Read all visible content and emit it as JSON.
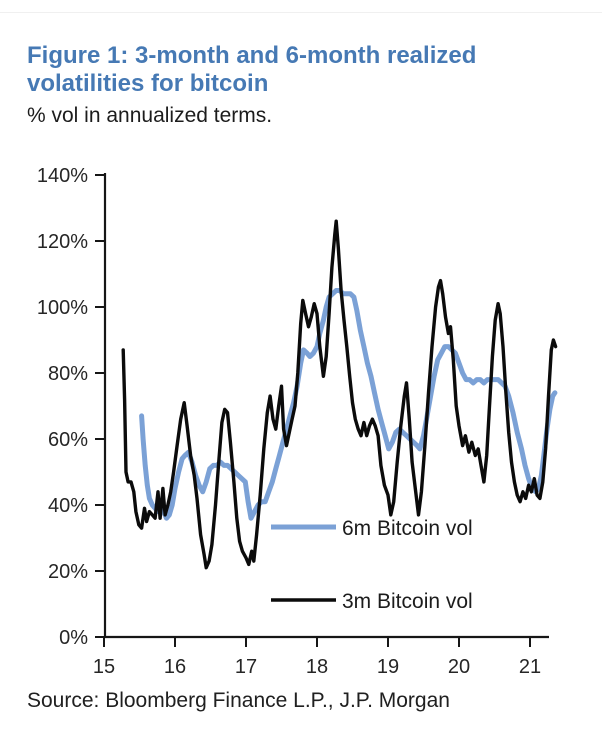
{
  "figure": {
    "title": "Figure 1: 3-month and 6-month realized volatilities for bitcoin",
    "title_lines": [
      "Figure 1: 3-month and 6-month realized",
      "volatilities for bitcoin"
    ],
    "title_color": "#4679b4",
    "subtitle": "% vol in annualized terms.",
    "source": "Source: Bloomberg Finance L.P., J.P. Morgan"
  },
  "chart_data": {
    "type": "line",
    "title": "Figure 1: 3-month and 6-month realized volatilities for bitcoin",
    "subtitle": "% vol in annualized terms.",
    "source": "Source: Bloomberg Finance L.P., J.P. Morgan",
    "xlabel": "",
    "ylabel": "% vol in annualized terms",
    "grid": false,
    "legend_position": "inside-bottom-center",
    "x_axis": {
      "tick_labels": [
        "15",
        "16",
        "17",
        "18",
        "19",
        "20",
        "21"
      ],
      "tick_values": [
        15,
        16,
        17,
        18,
        19,
        20,
        21
      ],
      "range": [
        14.97,
        21.45
      ]
    },
    "y_axis": {
      "tick_labels": [
        "0%",
        "20%",
        "40%",
        "60%",
        "80%",
        "100%",
        "120%",
        "140%"
      ],
      "tick_values": [
        0,
        20,
        40,
        60,
        80,
        100,
        120,
        140
      ],
      "range": [
        0,
        140
      ],
      "unit": "% annualized vol"
    },
    "legend": [
      {
        "label": "6m Bitcoin vol",
        "color": "#7ba1d6"
      },
      {
        "label": "3m Bitcoin vol",
        "color": "#0b0b0b"
      }
    ],
    "series": [
      {
        "name": "6m Bitcoin vol",
        "color": "#7ba1d6",
        "stroke_width": 5,
        "points": [
          [
            15.53,
            67
          ],
          [
            15.55,
            60
          ],
          [
            15.58,
            52
          ],
          [
            15.61,
            46
          ],
          [
            15.64,
            42
          ],
          [
            15.68,
            40
          ],
          [
            15.72,
            39
          ],
          [
            15.76,
            38
          ],
          [
            15.8,
            39
          ],
          [
            15.84,
            38
          ],
          [
            15.88,
            36
          ],
          [
            15.92,
            37
          ],
          [
            15.96,
            40
          ],
          [
            16.0,
            45
          ],
          [
            16.05,
            50
          ],
          [
            16.1,
            54
          ],
          [
            16.14,
            55
          ],
          [
            16.19,
            56
          ],
          [
            16.24,
            53
          ],
          [
            16.29,
            49
          ],
          [
            16.34,
            46
          ],
          [
            16.39,
            44
          ],
          [
            16.44,
            47
          ],
          [
            16.49,
            51
          ],
          [
            16.54,
            52
          ],
          [
            16.59,
            52
          ],
          [
            16.64,
            53
          ],
          [
            16.69,
            52
          ],
          [
            16.74,
            52
          ],
          [
            16.79,
            51
          ],
          [
            16.84,
            50
          ],
          [
            16.89,
            49
          ],
          [
            16.94,
            48
          ],
          [
            16.99,
            47
          ],
          [
            17.03,
            41
          ],
          [
            17.07,
            36
          ],
          [
            17.12,
            38
          ],
          [
            17.17,
            40
          ],
          [
            17.22,
            41
          ],
          [
            17.27,
            41
          ],
          [
            17.32,
            44
          ],
          [
            17.37,
            47
          ],
          [
            17.42,
            51
          ],
          [
            17.47,
            55
          ],
          [
            17.52,
            59
          ],
          [
            17.57,
            63
          ],
          [
            17.62,
            67
          ],
          [
            17.67,
            71
          ],
          [
            17.72,
            76
          ],
          [
            17.77,
            83
          ],
          [
            17.81,
            87
          ],
          [
            17.86,
            86
          ],
          [
            17.9,
            85
          ],
          [
            17.95,
            86
          ],
          [
            18.0,
            88
          ],
          [
            18.04,
            92
          ],
          [
            18.09,
            96
          ],
          [
            18.13,
            100
          ],
          [
            18.17,
            103
          ],
          [
            18.22,
            104
          ],
          [
            18.27,
            105
          ],
          [
            18.32,
            105
          ],
          [
            18.37,
            104
          ],
          [
            18.42,
            104
          ],
          [
            18.47,
            104
          ],
          [
            18.52,
            103
          ],
          [
            18.56,
            99
          ],
          [
            18.61,
            93
          ],
          [
            18.66,
            88
          ],
          [
            18.71,
            83
          ],
          [
            18.76,
            79
          ],
          [
            18.81,
            74
          ],
          [
            18.86,
            69
          ],
          [
            18.91,
            65
          ],
          [
            18.96,
            61
          ],
          [
            19.01,
            57
          ],
          [
            19.06,
            59
          ],
          [
            19.11,
            62
          ],
          [
            19.16,
            63
          ],
          [
            19.21,
            62
          ],
          [
            19.26,
            61
          ],
          [
            19.31,
            60
          ],
          [
            19.36,
            59
          ],
          [
            19.41,
            58
          ],
          [
            19.45,
            57
          ],
          [
            19.5,
            61
          ],
          [
            19.55,
            67
          ],
          [
            19.6,
            73
          ],
          [
            19.65,
            79
          ],
          [
            19.7,
            84
          ],
          [
            19.75,
            86
          ],
          [
            19.8,
            88
          ],
          [
            19.85,
            88
          ],
          [
            19.9,
            87
          ],
          [
            19.95,
            86
          ],
          [
            20.0,
            83
          ],
          [
            20.05,
            80
          ],
          [
            20.1,
            78
          ],
          [
            20.15,
            78
          ],
          [
            20.2,
            77
          ],
          [
            20.25,
            78
          ],
          [
            20.3,
            78
          ],
          [
            20.35,
            77
          ],
          [
            20.4,
            78
          ],
          [
            20.45,
            78
          ],
          [
            20.5,
            78
          ],
          [
            20.55,
            78
          ],
          [
            20.6,
            77
          ],
          [
            20.65,
            76
          ],
          [
            20.7,
            73
          ],
          [
            20.76,
            68
          ],
          [
            20.82,
            62
          ],
          [
            20.88,
            57
          ],
          [
            20.93,
            52
          ],
          [
            20.98,
            48
          ],
          [
            21.03,
            45
          ],
          [
            21.08,
            44
          ],
          [
            21.12,
            45
          ],
          [
            21.16,
            49
          ],
          [
            21.2,
            56
          ],
          [
            21.24,
            63
          ],
          [
            21.28,
            69
          ],
          [
            21.32,
            73
          ],
          [
            21.35,
            74
          ]
        ]
      },
      {
        "name": "3m Bitcoin vol",
        "color": "#0b0b0b",
        "stroke_width": 3.4,
        "points": [
          [
            15.27,
            87
          ],
          [
            15.29,
            72
          ],
          [
            15.31,
            50
          ],
          [
            15.34,
            47
          ],
          [
            15.38,
            47
          ],
          [
            15.42,
            44
          ],
          [
            15.45,
            38
          ],
          [
            15.49,
            34
          ],
          [
            15.53,
            33
          ],
          [
            15.57,
            39
          ],
          [
            15.6,
            35
          ],
          [
            15.64,
            38
          ],
          [
            15.68,
            37
          ],
          [
            15.72,
            36
          ],
          [
            15.76,
            44
          ],
          [
            15.79,
            36
          ],
          [
            15.83,
            45
          ],
          [
            15.86,
            37
          ],
          [
            15.9,
            40
          ],
          [
            15.94,
            44
          ],
          [
            15.98,
            50
          ],
          [
            16.03,
            58
          ],
          [
            16.08,
            66
          ],
          [
            16.13,
            71
          ],
          [
            16.17,
            64
          ],
          [
            16.22,
            55
          ],
          [
            16.27,
            49
          ],
          [
            16.31,
            42
          ],
          [
            16.36,
            31
          ],
          [
            16.41,
            25
          ],
          [
            16.44,
            21
          ],
          [
            16.48,
            23
          ],
          [
            16.52,
            28
          ],
          [
            16.57,
            40
          ],
          [
            16.62,
            54
          ],
          [
            16.66,
            65
          ],
          [
            16.7,
            69
          ],
          [
            16.74,
            68
          ],
          [
            16.78,
            59
          ],
          [
            16.83,
            47
          ],
          [
            16.87,
            36
          ],
          [
            16.91,
            29
          ],
          [
            16.95,
            26
          ],
          [
            17.0,
            24
          ],
          [
            17.04,
            22
          ],
          [
            17.08,
            26
          ],
          [
            17.11,
            23
          ],
          [
            17.15,
            31
          ],
          [
            17.2,
            43
          ],
          [
            17.25,
            57
          ],
          [
            17.3,
            68
          ],
          [
            17.34,
            73
          ],
          [
            17.38,
            66
          ],
          [
            17.42,
            63
          ],
          [
            17.46,
            70
          ],
          [
            17.5,
            76
          ],
          [
            17.53,
            63
          ],
          [
            17.57,
            58
          ],
          [
            17.61,
            62
          ],
          [
            17.65,
            66
          ],
          [
            17.69,
            70
          ],
          [
            17.73,
            80
          ],
          [
            17.77,
            95
          ],
          [
            17.8,
            102
          ],
          [
            17.84,
            98
          ],
          [
            17.88,
            94
          ],
          [
            17.92,
            97
          ],
          [
            17.96,
            101
          ],
          [
            18.0,
            98
          ],
          [
            18.04,
            88
          ],
          [
            18.09,
            79
          ],
          [
            18.13,
            85
          ],
          [
            18.17,
            98
          ],
          [
            18.21,
            112
          ],
          [
            18.25,
            122
          ],
          [
            18.27,
            126
          ],
          [
            18.3,
            118
          ],
          [
            18.34,
            105
          ],
          [
            18.38,
            96
          ],
          [
            18.42,
            88
          ],
          [
            18.46,
            79
          ],
          [
            18.5,
            71
          ],
          [
            18.54,
            66
          ],
          [
            18.58,
            63
          ],
          [
            18.62,
            61
          ],
          [
            18.66,
            65
          ],
          [
            18.7,
            61
          ],
          [
            18.74,
            64
          ],
          [
            18.78,
            66
          ],
          [
            18.82,
            64
          ],
          [
            18.86,
            61
          ],
          [
            18.9,
            52
          ],
          [
            18.95,
            46
          ],
          [
            19.0,
            43
          ],
          [
            19.04,
            37
          ],
          [
            19.08,
            41
          ],
          [
            19.13,
            53
          ],
          [
            19.18,
            64
          ],
          [
            19.23,
            73
          ],
          [
            19.26,
            77
          ],
          [
            19.3,
            66
          ],
          [
            19.34,
            53
          ],
          [
            19.39,
            44
          ],
          [
            19.43,
            37
          ],
          [
            19.47,
            44
          ],
          [
            19.52,
            58
          ],
          [
            19.57,
            74
          ],
          [
            19.62,
            88
          ],
          [
            19.67,
            100
          ],
          [
            19.71,
            106
          ],
          [
            19.74,
            108
          ],
          [
            19.77,
            104
          ],
          [
            19.81,
            97
          ],
          [
            19.85,
            92
          ],
          [
            19.88,
            94
          ],
          [
            19.92,
            84
          ],
          [
            19.96,
            70
          ],
          [
            20.0,
            64
          ],
          [
            20.05,
            58
          ],
          [
            20.09,
            61
          ],
          [
            20.14,
            56
          ],
          [
            20.18,
            59
          ],
          [
            20.23,
            55
          ],
          [
            20.27,
            57
          ],
          [
            20.31,
            52
          ],
          [
            20.35,
            47
          ],
          [
            20.39,
            55
          ],
          [
            20.43,
            70
          ],
          [
            20.47,
            85
          ],
          [
            20.51,
            96
          ],
          [
            20.55,
            101
          ],
          [
            20.58,
            98
          ],
          [
            20.62,
            88
          ],
          [
            20.66,
            74
          ],
          [
            20.7,
            62
          ],
          [
            20.74,
            53
          ],
          [
            20.78,
            47
          ],
          [
            20.82,
            43
          ],
          [
            20.86,
            41
          ],
          [
            20.9,
            44
          ],
          [
            20.94,
            42
          ],
          [
            20.98,
            46
          ],
          [
            21.02,
            44
          ],
          [
            21.06,
            48
          ],
          [
            21.1,
            43
          ],
          [
            21.14,
            42
          ],
          [
            21.18,
            47
          ],
          [
            21.22,
            57
          ],
          [
            21.26,
            73
          ],
          [
            21.3,
            87
          ],
          [
            21.33,
            90
          ],
          [
            21.36,
            88
          ]
        ]
      }
    ]
  }
}
